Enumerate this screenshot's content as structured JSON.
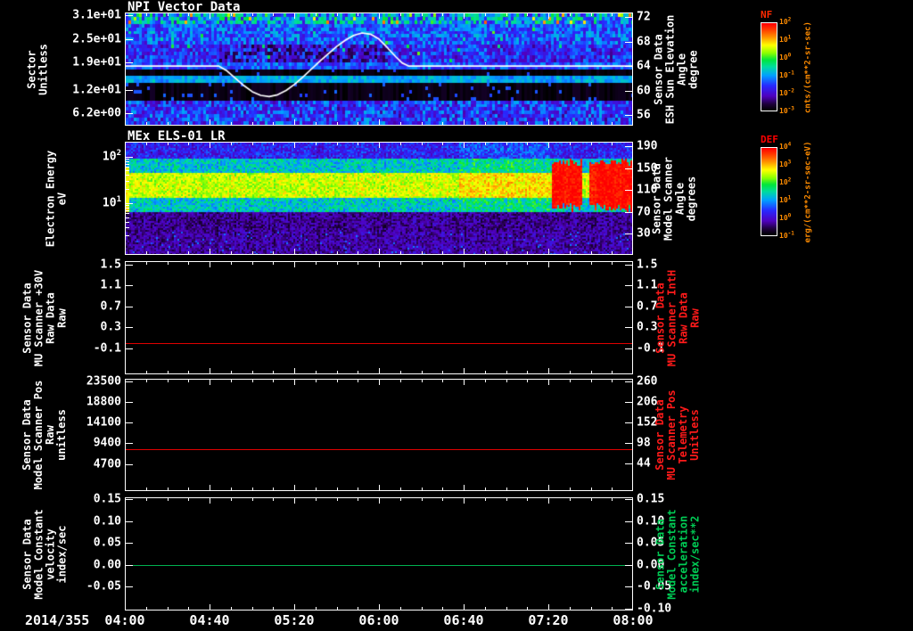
{
  "date_label": "2014/355",
  "x_axis": {
    "start_min": 0,
    "end_min": 240,
    "minor_step_min": 10,
    "major_ticks": [
      {
        "label": "04:00",
        "min": 0
      },
      {
        "label": "04:40",
        "min": 40
      },
      {
        "label": "05:20",
        "min": 80
      },
      {
        "label": "06:00",
        "min": 120
      },
      {
        "label": "06:40",
        "min": 160
      },
      {
        "label": "07:20",
        "min": 200
      },
      {
        "label": "08:00",
        "min": 240
      }
    ]
  },
  "chart_data": [
    {
      "key": "npi-vector-data",
      "title": "NPI Vector Data",
      "type": "heatmap",
      "subtype": "npi",
      "left_axis": {
        "label_lines": [
          "Sector",
          "Unitless"
        ],
        "color": "#ffffff",
        "min": 3.2,
        "max": 31.5,
        "ticks": [
          {
            "v": 31,
            "label": "3.1e+01"
          },
          {
            "v": 25,
            "label": "2.5e+01"
          },
          {
            "v": 19,
            "label": "1.9e+01"
          },
          {
            "v": 12,
            "label": "1.2e+01"
          },
          {
            "v": 6.2,
            "label": "6.2e+00"
          }
        ]
      },
      "right_axis": {
        "label_lines": [
          "Sensor Data",
          "ESH Sun Elevation",
          "Angle",
          "degree"
        ],
        "color": "#ffffff",
        "min": 54.4,
        "max": 72.6,
        "ticks": [
          {
            "v": 72,
            "label": "72"
          },
          {
            "v": 68,
            "label": "68"
          },
          {
            "v": 64,
            "label": "64"
          },
          {
            "v": 60,
            "label": "60"
          },
          {
            "v": 56,
            "label": "56"
          }
        ]
      },
      "heatmap": {
        "sectors": 32,
        "row_bands": [
          {
            "rows": [
              0,
              2
            ],
            "level": 0.4,
            "noise": 0.18,
            "speck": 0.06
          },
          {
            "rows": [
              3,
              8
            ],
            "level": 0.32,
            "noise": 0.12
          },
          {
            "rows": [
              9,
              13
            ],
            "level": 0.26,
            "noise": 0.12,
            "dark_time_min": [
              42,
              125
            ]
          },
          {
            "rows": [
              14,
              15
            ],
            "level": 0.31,
            "noise": 0.1
          },
          {
            "rows": [
              16,
              17
            ],
            "level": 0.01,
            "noise": 0.0,
            "speck": 0.03
          },
          {
            "rows": [
              18,
              19
            ],
            "level": 0.41,
            "noise": 0.06
          },
          {
            "rows": [
              20,
              24
            ],
            "level": 0.02,
            "noise": 0.0,
            "speck": 0.07
          },
          {
            "rows": [
              25,
              31
            ],
            "level": 0.28,
            "noise": 0.14
          }
        ]
      },
      "overlay_line": {
        "series_name": "ESH Sun Elevation Angle (degree)",
        "color": "#ffffff",
        "axis": "right",
        "points": [
          [
            0,
            64
          ],
          [
            44,
            64
          ],
          [
            48,
            63.2
          ],
          [
            52,
            62
          ],
          [
            56,
            60.8
          ],
          [
            60,
            59.8
          ],
          [
            64,
            59.2
          ],
          [
            68,
            59
          ],
          [
            72,
            59.3
          ],
          [
            76,
            60
          ],
          [
            80,
            61
          ],
          [
            84,
            62.2
          ],
          [
            88,
            63.5
          ],
          [
            92,
            64.8
          ],
          [
            96,
            66
          ],
          [
            100,
            67.2
          ],
          [
            104,
            68.2
          ],
          [
            108,
            69
          ],
          [
            112,
            69.4
          ],
          [
            116,
            69.2
          ],
          [
            120,
            68.4
          ],
          [
            124,
            67
          ],
          [
            128,
            65.5
          ],
          [
            131,
            64.5
          ],
          [
            134,
            64
          ],
          [
            240,
            64
          ]
        ]
      }
    },
    {
      "key": "mex-els-01-lr",
      "title": "MEx ELS-01 LR",
      "type": "heatmap",
      "subtype": "els",
      "left_axis": {
        "label_lines": [
          "Electron Energy",
          "eV"
        ],
        "color": "#ffffff",
        "log": true,
        "min": 0.8,
        "max": 200,
        "ticks": [
          {
            "v": 100,
            "exp": "2"
          },
          {
            "v": 10,
            "exp": "1"
          }
        ],
        "minor_ticks": [
          2,
          3,
          4,
          5,
          6,
          7,
          8,
          9,
          20,
          30,
          40,
          50,
          60,
          70,
          80,
          90
        ]
      },
      "right_axis": {
        "label_lines": [
          "Sensor Data",
          "Model Scanner",
          "Angle",
          "degrees"
        ],
        "color": "#ffffff",
        "min": -6.8,
        "max": 196.4,
        "ticks": [
          {
            "v": 190,
            "label": "190"
          },
          {
            "v": 150,
            "label": "150"
          },
          {
            "v": 110,
            "label": "110"
          },
          {
            "v": 70,
            "label": "70"
          },
          {
            "v": 30,
            "label": "30"
          }
        ]
      },
      "heatmap": {
        "core_energy_eV": [
          13,
          48
        ],
        "core_level": 0.71,
        "mid_energy_eV": [
          6.5,
          95
        ],
        "mid_level": 0.46,
        "upper_level": 0.25,
        "low_level": 0.13,
        "deep_below_eV": 2.5,
        "deep_level": 0.07,
        "enhanced": {
          "range_min": [
            158,
            201
          ],
          "boost": 0.06
        },
        "red_feature": {
          "start_min": 201.5,
          "gap_min": [
            215.5,
            219
          ],
          "energy_eV": [
            8.5,
            82
          ],
          "level": 0.93
        }
      }
    },
    {
      "key": "mu-scanner-plus30v",
      "type": "line",
      "left_axis": {
        "label_lines": [
          "Sensor Data",
          "MU Scanner +30V",
          "Raw Data",
          "Raw"
        ],
        "color": "#ffffff",
        "min": -0.58,
        "max": 1.55,
        "ticks": [
          {
            "v": 1.5,
            "label": "1.5"
          },
          {
            "v": 1.1,
            "label": "1.1"
          },
          {
            "v": 0.7,
            "label": "0.7"
          },
          {
            "v": 0.3,
            "label": "0.3"
          },
          {
            "v": -0.1,
            "label": "-0.1"
          }
        ]
      },
      "right_axis": {
        "label_lines": [
          "Sensor Data",
          "MU Scanner IntH",
          "Raw Data",
          "Raw"
        ],
        "color": "#ff1a1a",
        "tick_color": "#ffffff",
        "min": -0.58,
        "max": 1.55,
        "ticks": [
          {
            "v": 1.5,
            "label": "1.5"
          },
          {
            "v": 1.1,
            "label": "1.1"
          },
          {
            "v": 0.7,
            "label": "0.7"
          },
          {
            "v": 0.3,
            "label": "0.3"
          },
          {
            "v": -0.1,
            "label": "-0.1"
          }
        ]
      },
      "line": {
        "constant": 0.0,
        "color": "#e00000"
      }
    },
    {
      "key": "model-scanner-pos",
      "type": "line",
      "left_axis": {
        "label_lines": [
          "Sensor Data",
          "Model Scanner Pos",
          "Raw",
          "unitless"
        ],
        "color": "#ffffff",
        "min": -1300,
        "max": 23950,
        "ticks": [
          {
            "v": 23500,
            "label": "23500"
          },
          {
            "v": 18800,
            "label": "18800"
          },
          {
            "v": 14100,
            "label": "14100"
          },
          {
            "v": 9400,
            "label": "9400"
          },
          {
            "v": 4700,
            "label": "4700"
          }
        ]
      },
      "right_axis": {
        "label_lines": [
          "Sensor Data",
          "MU Scanner Pos",
          "Telemetry",
          "Unitless"
        ],
        "color": "#ff1a1a",
        "tick_color": "#ffffff",
        "min": -25,
        "max": 265,
        "ticks": [
          {
            "v": 260,
            "label": "260"
          },
          {
            "v": 206,
            "label": "206"
          },
          {
            "v": 152,
            "label": "152"
          },
          {
            "v": 98,
            "label": "98"
          },
          {
            "v": 44,
            "label": "44"
          }
        ]
      },
      "line": {
        "constant": 8000,
        "color": "#e00000"
      }
    },
    {
      "key": "model-constant-velocity",
      "type": "line",
      "left_axis": {
        "label_lines": [
          "Sensor Data",
          "Model Constant",
          "velocity",
          "index/sec"
        ],
        "color": "#ffffff",
        "min": -0.102,
        "max": 0.152,
        "ticks": [
          {
            "v": 0.15,
            "label": "0.15"
          },
          {
            "v": 0.1,
            "label": "0.10"
          },
          {
            "v": 0.05,
            "label": "0.05"
          },
          {
            "v": 0,
            "label": "0.00"
          },
          {
            "v": -0.05,
            "label": "-0.05"
          }
        ]
      },
      "right_axis": {
        "label_lines": [
          "Sensor Data",
          "Model Constant",
          "acceleration",
          "index/sec**2"
        ],
        "color": "#00cc55",
        "tick_color": "#ffffff",
        "min": -0.102,
        "max": 0.152,
        "ticks": [
          {
            "v": 0.15,
            "label": "0.15"
          },
          {
            "v": 0.1,
            "label": "0.10"
          },
          {
            "v": 0.05,
            "label": "0.05"
          },
          {
            "v": 0,
            "label": "0.00"
          },
          {
            "v": -0.05,
            "label": "-0.05"
          },
          {
            "v": -0.1,
            "label": "-0.10"
          }
        ]
      },
      "line": {
        "constant": 0.0,
        "color": "#00b050"
      }
    }
  ],
  "colorbars": [
    {
      "key": "nf",
      "title": "NF",
      "title_color": "#ff2a00",
      "tick_color": "#ff8c00",
      "tick_exponents": [
        "2",
        "1",
        "0",
        "-1",
        "-2",
        "-3"
      ],
      "units": "cnts/(cm**2-sr-sec)",
      "units_color": "#ff8c00"
    },
    {
      "key": "def",
      "title": "DEF",
      "title_color": "#ff0000",
      "tick_color": "#ff8c00",
      "tick_exponents": [
        "4",
        "3",
        "2",
        "1",
        "0",
        "-1"
      ],
      "units": "erg/(cm**2-sr-sec-eV)",
      "units_color": "#ff8c00"
    }
  ]
}
